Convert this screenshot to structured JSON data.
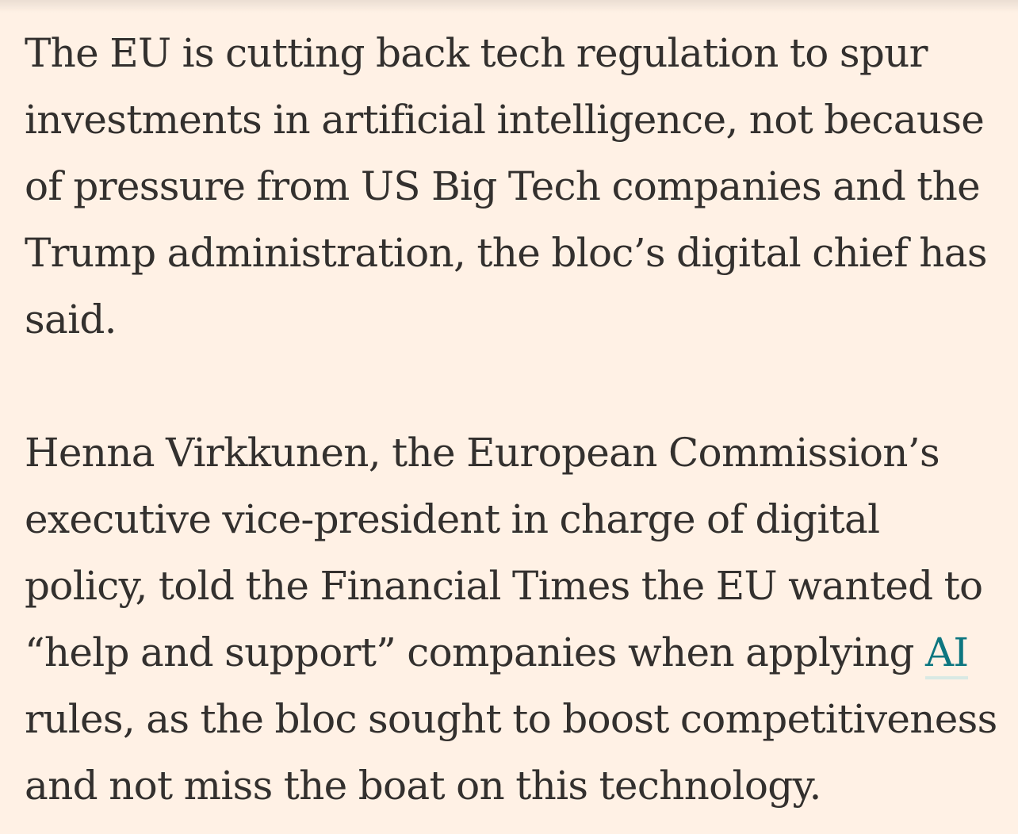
{
  "article": {
    "paragraphs": [
      {
        "text": "The EU is cutting back tech regulation to spur investments in artificial intelligence, not because of pressure from US Big Tech companies and the Trump administration, the bloc’s digital chief has said."
      },
      {
        "before_link": "Henna Virkkunen, the European Commission’s executive vice-president in charge of digital policy, told the Financial Times the EU wanted to “help and support” companies when applying ",
        "link_text": "AI",
        "after_link": " rules, as the bloc sought to boost competitiveness and not miss the boat on this technology."
      }
    ]
  },
  "colors": {
    "background": "#fff1e5",
    "text": "#33302e",
    "link": "#0d7680",
    "link_underline": "#d9e9e4"
  }
}
